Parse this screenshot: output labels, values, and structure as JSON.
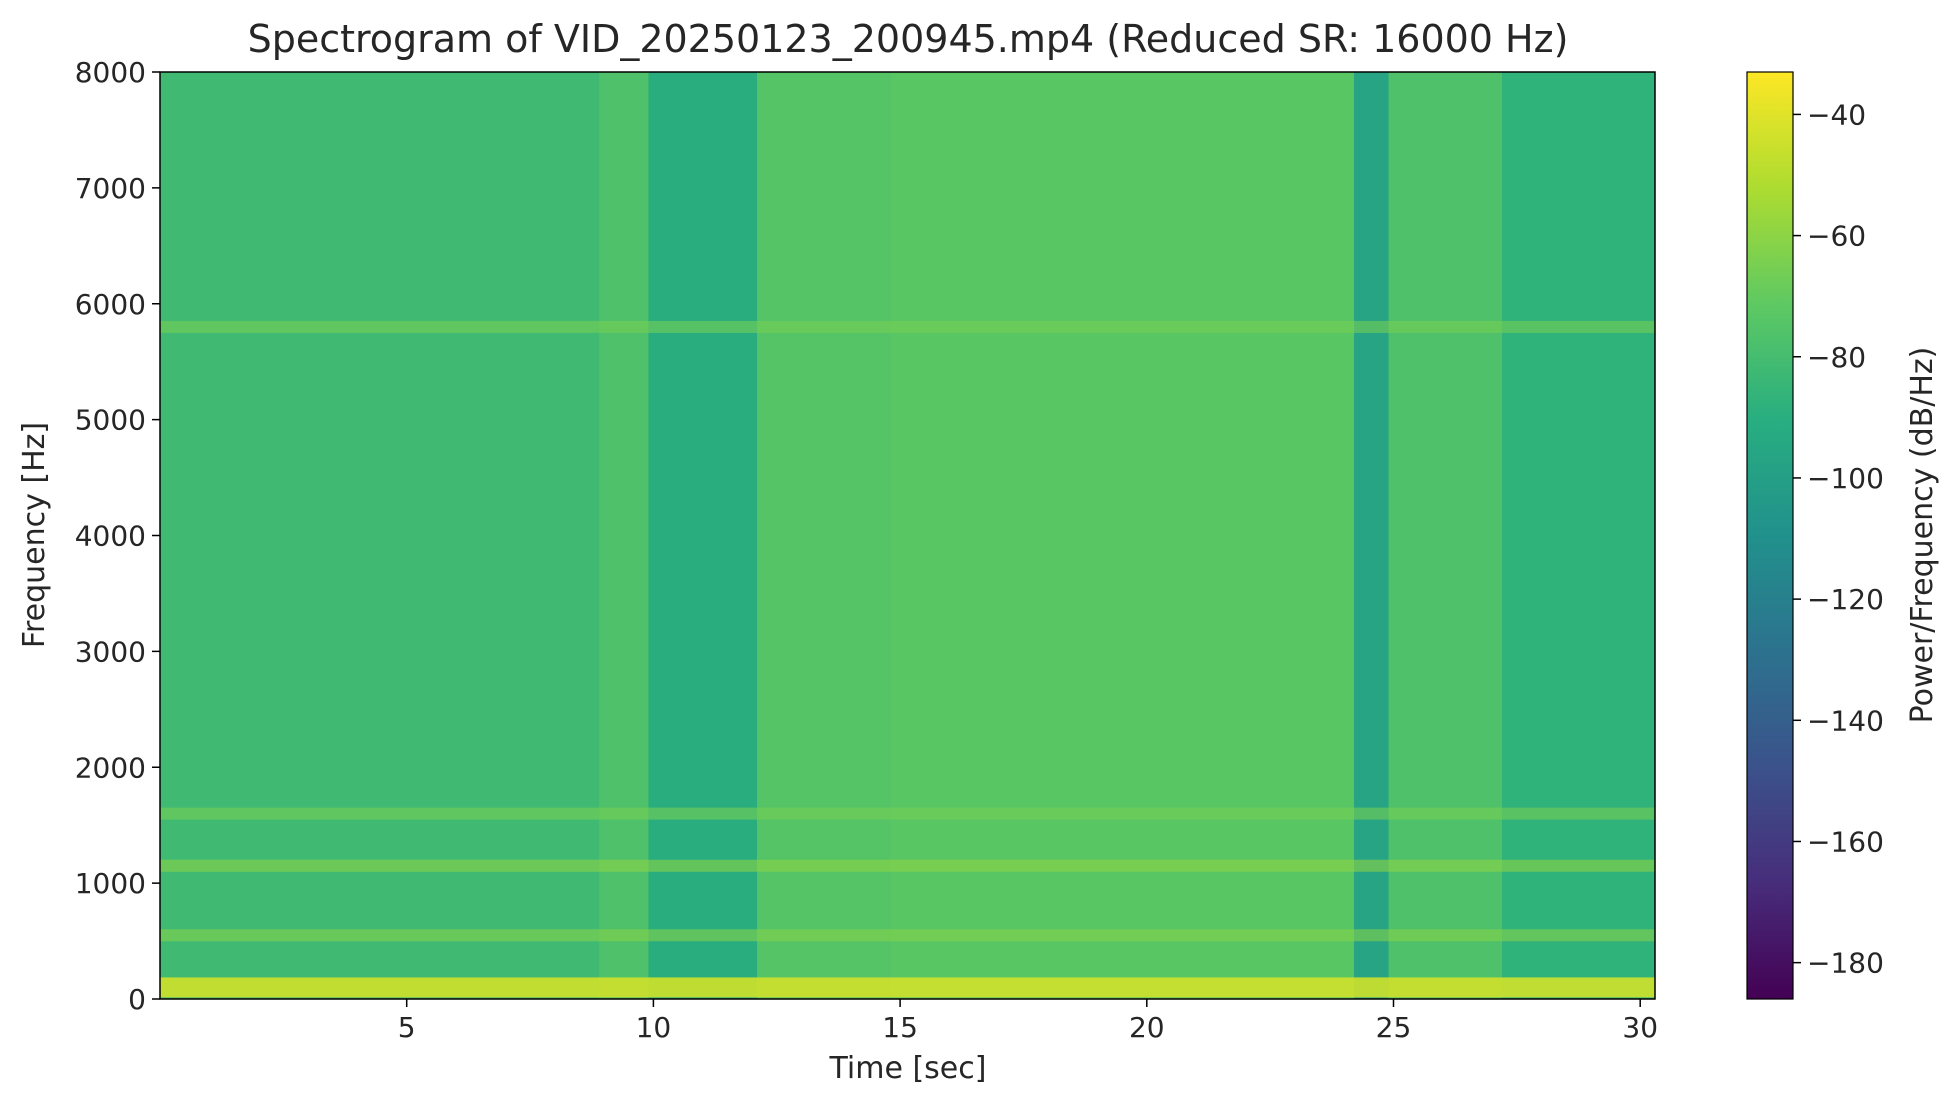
{
  "chart_data": {
    "type": "heatmap",
    "title": "Spectrogram of VID_20250123_200945.mp4 (Reduced SR: 16000 Hz)",
    "xlabel": "Time [sec]",
    "ylabel": "Frequency [Hz]",
    "xlim": [
      0,
      30.3
    ],
    "ylim": [
      0,
      8000
    ],
    "xticks": [
      5,
      10,
      15,
      20,
      25,
      30
    ],
    "yticks": [
      0,
      1000,
      2000,
      3000,
      4000,
      5000,
      6000,
      7000,
      8000
    ],
    "colormap": "viridis",
    "colorbar": {
      "label": "Power/Frequency (dB/Hz)",
      "range": [
        -186,
        -33
      ],
      "ticks": [
        -40,
        -60,
        -80,
        -100,
        -120,
        -140,
        -160,
        -180
      ]
    },
    "time_segments": [
      {
        "start": 0,
        "end": 8.9,
        "level_db": -82
      },
      {
        "start": 8.9,
        "end": 9.9,
        "level_db": -76
      },
      {
        "start": 9.9,
        "end": 12.1,
        "level_db": -92
      },
      {
        "start": 12.1,
        "end": 14.8,
        "level_db": -74
      },
      {
        "start": 14.8,
        "end": 24.2,
        "level_db": -72
      },
      {
        "start": 24.2,
        "end": 24.9,
        "level_db": -98
      },
      {
        "start": 24.9,
        "end": 27.2,
        "level_db": -76
      },
      {
        "start": 27.2,
        "end": 30.3,
        "level_db": -88
      }
    ],
    "frequency_bands": [
      {
        "freq": 100,
        "level_db": -44
      },
      {
        "freq": 550,
        "level_db": -62
      },
      {
        "freq": 1150,
        "level_db": -60
      },
      {
        "freq": 1600,
        "level_db": -66
      },
      {
        "freq": 5800,
        "level_db": -66
      }
    ]
  }
}
